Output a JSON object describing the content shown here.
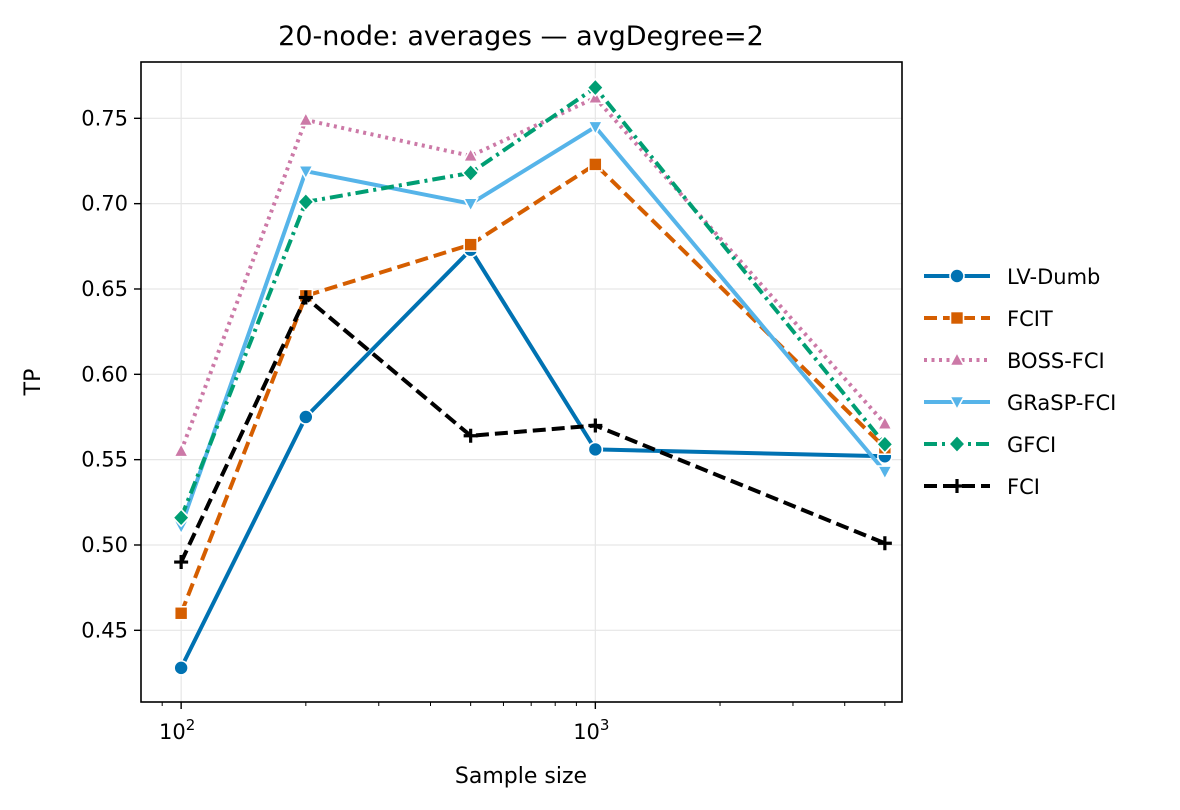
{
  "chart_data": {
    "type": "line",
    "title": "20-node: averages — avgDegree=2",
    "xlabel": "Sample size",
    "ylabel": "TP",
    "xscale": "log",
    "xlim": [
      80,
      5500
    ],
    "ylim": [
      0.408,
      0.783
    ],
    "x": [
      100,
      200,
      500,
      1000,
      5000
    ],
    "x_ticks": [
      {
        "value": 100,
        "base": "10",
        "exp": "2"
      },
      {
        "value": 1000,
        "base": "10",
        "exp": "3"
      }
    ],
    "y_ticks": [
      0.45,
      0.5,
      0.55,
      0.6,
      0.65,
      0.7,
      0.75
    ],
    "y_tick_labels": [
      "0.45",
      "0.50",
      "0.55",
      "0.60",
      "0.65",
      "0.70",
      "0.75"
    ],
    "grid": true,
    "legend_position": "right, outside plot",
    "series": [
      {
        "name": "LV-Dumb",
        "color": "#0072b2",
        "dash": "solid",
        "marker": "circle",
        "values": [
          0.428,
          0.575,
          0.673,
          0.556,
          0.552
        ]
      },
      {
        "name": "FCIT",
        "color": "#d55e00",
        "dash": "dashed",
        "marker": "square",
        "values": [
          0.46,
          0.646,
          0.676,
          0.723,
          0.557
        ]
      },
      {
        "name": "BOSS-FCI",
        "color": "#cc79a7",
        "dash": "dotted",
        "marker": "triangle-up",
        "values": [
          0.555,
          0.749,
          0.728,
          0.762,
          0.571
        ]
      },
      {
        "name": "GRaSP-FCI",
        "color": "#56b4e9",
        "dash": "solid",
        "marker": "triangle-down",
        "values": [
          0.511,
          0.719,
          0.7,
          0.745,
          0.543
        ]
      },
      {
        "name": "GFCI",
        "color": "#009e73",
        "dash": "dashdot",
        "marker": "diamond",
        "values": [
          0.516,
          0.701,
          0.718,
          0.768,
          0.559
        ]
      },
      {
        "name": "FCI",
        "color": "#000000",
        "dash": "dashed",
        "marker": "plus",
        "values": [
          0.49,
          0.645,
          0.564,
          0.57,
          0.501
        ]
      }
    ]
  }
}
